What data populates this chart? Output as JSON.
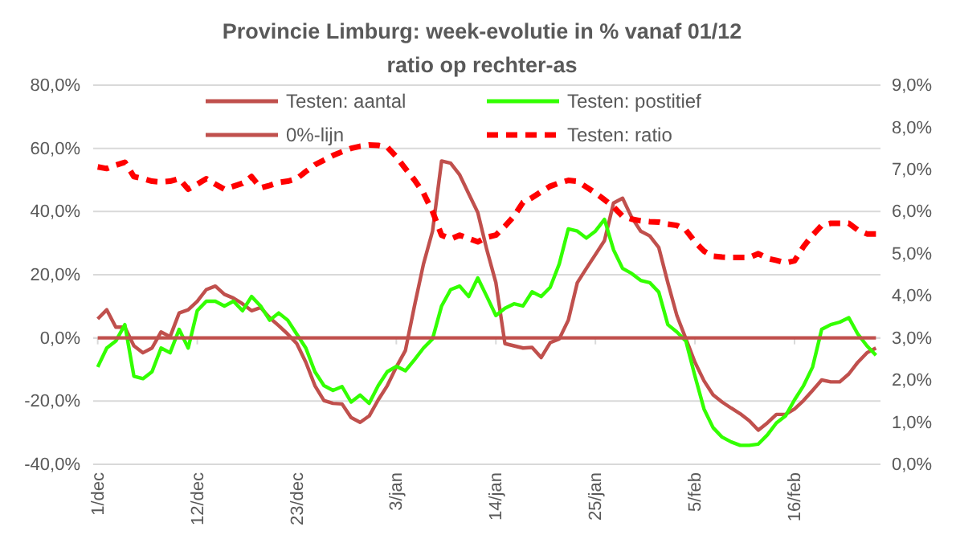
{
  "chart_data": {
    "type": "line",
    "title": "Provincie Limburg: week-evolutie in %  vanaf 01/12",
    "subtitle": "ratio op rechter-as",
    "categories": [
      "1/dec",
      null,
      null,
      null,
      null,
      null,
      null,
      null,
      null,
      null,
      null,
      "12/dec",
      null,
      null,
      null,
      null,
      null,
      null,
      null,
      null,
      null,
      null,
      "23/dec",
      null,
      null,
      null,
      null,
      null,
      null,
      null,
      null,
      null,
      null,
      "3/jan",
      null,
      null,
      null,
      null,
      null,
      null,
      null,
      null,
      null,
      null,
      "14/jan",
      null,
      null,
      null,
      null,
      null,
      null,
      null,
      null,
      null,
      null,
      "25/jan",
      null,
      null,
      null,
      null,
      null,
      null,
      null,
      null,
      null,
      null,
      "5/feb",
      null,
      null,
      null,
      null,
      null,
      null,
      null,
      null,
      null,
      null,
      "16/feb",
      null,
      null,
      null,
      null,
      null,
      null,
      null,
      null,
      null
    ],
    "series": [
      {
        "name": "Testen: aantal",
        "color": "#c0504d",
        "line_style": "solid",
        "values": [
          6.0,
          8.9,
          3.4,
          3.4,
          -2.5,
          -4.7,
          -3.2,
          1.9,
          0.4,
          7.9,
          8.9,
          11.6,
          15.3,
          16.4,
          13.8,
          12.6,
          10.8,
          8.6,
          9.6,
          6.4,
          3.9,
          1.2,
          -1.8,
          -7.7,
          -15.1,
          -19.8,
          -20.7,
          -20.9,
          -25.2,
          -26.7,
          -24.7,
          -19.6,
          -15.1,
          -9.2,
          -4.0,
          10.1,
          23.4,
          33.8,
          56.0,
          55.3,
          51.6,
          45.6,
          39.7,
          27.9,
          17.5,
          -1.8,
          -2.5,
          -3.2,
          -3.0,
          -6.2,
          -1.5,
          -0.3,
          5.6,
          17.5,
          22.0,
          26.4,
          30.8,
          42.7,
          44.2,
          38.2,
          33.8,
          32.3,
          28.6,
          17.5,
          7.1,
          -0.3,
          -7.7,
          -13.6,
          -18.0,
          -20.3,
          -22.2,
          -24.0,
          -26.2,
          -29.2,
          -26.9,
          -24.2,
          -24.2,
          -22.5,
          -19.8,
          -16.6,
          -13.3,
          -13.9,
          -13.9,
          -11.4,
          -7.7,
          -4.7,
          -3.2
        ]
      },
      {
        "name": "Testen: postitief",
        "color": "#33ff00",
        "line_style": "solid",
        "values": [
          -9.2,
          -3.2,
          -1.0,
          4.2,
          -12.1,
          -12.9,
          -10.7,
          -3.2,
          -4.7,
          2.7,
          -3.2,
          8.6,
          11.6,
          11.6,
          10.1,
          11.6,
          8.6,
          13.1,
          10.1,
          5.6,
          7.9,
          5.6,
          1.2,
          -3.2,
          -10.7,
          -15.1,
          -16.6,
          -15.4,
          -20.3,
          -18.1,
          -20.7,
          -15.1,
          -10.7,
          -9.0,
          -10.4,
          -6.9,
          -3.2,
          -0.3,
          10.1,
          15.3,
          16.4,
          13.1,
          19.0,
          13.1,
          7.1,
          9.4,
          10.8,
          10.1,
          14.6,
          13.1,
          16.0,
          23.4,
          34.5,
          33.8,
          31.6,
          33.8,
          37.5,
          27.9,
          22.0,
          20.4,
          18.2,
          17.5,
          14.5,
          4.2,
          1.9,
          -1.0,
          -12.1,
          -22.5,
          -28.4,
          -31.4,
          -32.9,
          -34.0,
          -34.0,
          -33.6,
          -30.7,
          -26.9,
          -24.7,
          -19.6,
          -15.1,
          -9.2,
          2.7,
          4.2,
          5.0,
          6.4,
          1.2,
          -2.5,
          -5.5
        ]
      },
      {
        "name": "0%-lijn",
        "color": "#c0504d",
        "line_style": "solid",
        "values": [
          0,
          0,
          0,
          0,
          0,
          0,
          0,
          0,
          0,
          0,
          0,
          0,
          0,
          0,
          0,
          0,
          0,
          0,
          0,
          0,
          0,
          0,
          0,
          0,
          0,
          0,
          0,
          0,
          0,
          0,
          0,
          0,
          0,
          0,
          0,
          0,
          0,
          0,
          0,
          0,
          0,
          0,
          0,
          0,
          0,
          0,
          0,
          0,
          0,
          0,
          0,
          0,
          0,
          0,
          0,
          0,
          0,
          0,
          0,
          0,
          0,
          0,
          0,
          0,
          0,
          0,
          0,
          0,
          0,
          0,
          0,
          0,
          0,
          0,
          0,
          0,
          0,
          0,
          0,
          0,
          0,
          0,
          0,
          0,
          0,
          0,
          0
        ]
      },
      {
        "name": "Testen: ratio",
        "color": "#ff0000",
        "line_style": "dashed",
        "axis": "y2",
        "values": [
          7.06,
          7.02,
          7.1,
          7.17,
          6.83,
          6.78,
          6.72,
          6.7,
          6.72,
          6.78,
          6.53,
          6.65,
          6.78,
          6.65,
          6.53,
          6.6,
          6.67,
          6.83,
          6.56,
          6.62,
          6.69,
          6.72,
          6.78,
          6.95,
          7.11,
          7.22,
          7.33,
          7.42,
          7.5,
          7.55,
          7.58,
          7.57,
          7.53,
          7.3,
          7.02,
          6.75,
          6.44,
          6.0,
          5.44,
          5.35,
          5.44,
          5.36,
          5.28,
          5.39,
          5.44,
          5.65,
          5.89,
          6.22,
          6.33,
          6.47,
          6.6,
          6.68,
          6.74,
          6.72,
          6.58,
          6.44,
          6.28,
          6.11,
          5.89,
          5.82,
          5.78,
          5.76,
          5.75,
          5.7,
          5.67,
          5.56,
          5.28,
          5.06,
          4.94,
          4.92,
          4.91,
          4.91,
          4.91,
          5.0,
          4.89,
          4.84,
          4.78,
          4.83,
          5.17,
          5.44,
          5.67,
          5.72,
          5.72,
          5.72,
          5.56,
          5.47,
          5.47
        ]
      }
    ],
    "ylim": [
      -40,
      80
    ],
    "yticks": [
      {
        "value": -40,
        "label": "-40,0%"
      },
      {
        "value": -20,
        "label": "-20,0%"
      },
      {
        "value": 0,
        "label": "0,0%"
      },
      {
        "value": 20,
        "label": "20,0%"
      },
      {
        "value": 40,
        "label": "40,0%"
      },
      {
        "value": 60,
        "label": "60,0%"
      },
      {
        "value": 80,
        "label": "80,0%"
      }
    ],
    "y2lim": [
      0,
      9
    ],
    "y2ticks": [
      {
        "value": 0,
        "label": "0,0%"
      },
      {
        "value": 1,
        "label": "1,0%"
      },
      {
        "value": 2,
        "label": "2,0%"
      },
      {
        "value": 3,
        "label": "3,0%"
      },
      {
        "value": 4,
        "label": "4,0%"
      },
      {
        "value": 5,
        "label": "5,0%"
      },
      {
        "value": 6,
        "label": "6,0%"
      },
      {
        "value": 7,
        "label": "7,0%"
      },
      {
        "value": 8,
        "label": "8,0%"
      },
      {
        "value": 9,
        "label": "9,0%"
      }
    ],
    "grid": "y",
    "legend": "top"
  }
}
